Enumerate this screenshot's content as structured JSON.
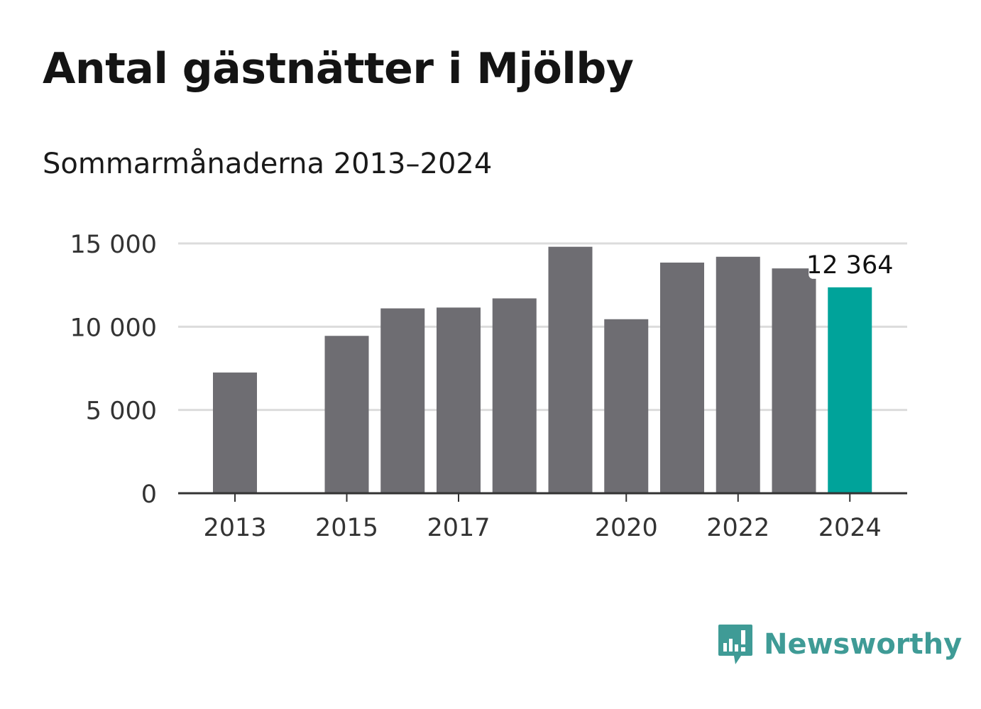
{
  "header": {
    "title": "Antal gästnätter i Mjölby",
    "subtitle": "Sommarmånaderna 2013–2024"
  },
  "brand": {
    "name": "Newsworthy",
    "logo_icon": "newsworthy-chart-bubble-icon",
    "color": "#3f9b96"
  },
  "chart_data": {
    "type": "bar",
    "categories": [
      "2013",
      "2014",
      "2015",
      "2016",
      "2017",
      "2018",
      "2019",
      "2020",
      "2021",
      "2022",
      "2023",
      "2024"
    ],
    "values": [
      7250,
      null,
      9450,
      11100,
      11150,
      11700,
      14800,
      10450,
      13850,
      14200,
      13500,
      12364
    ],
    "x_tick_labels": [
      "2013",
      "2015",
      "2017",
      "2020",
      "2022",
      "2024"
    ],
    "y_ticks": [
      0,
      5000,
      10000,
      15000
    ],
    "y_tick_labels": [
      "0",
      "5 000",
      "10 000",
      "15 000"
    ],
    "ylim": [
      0,
      15000
    ],
    "grid": true,
    "bar_color": "#6e6d72",
    "highlight_color": "#00a39a",
    "highlight_index": 11,
    "annotation": {
      "index": 11,
      "text": "12 364"
    }
  }
}
